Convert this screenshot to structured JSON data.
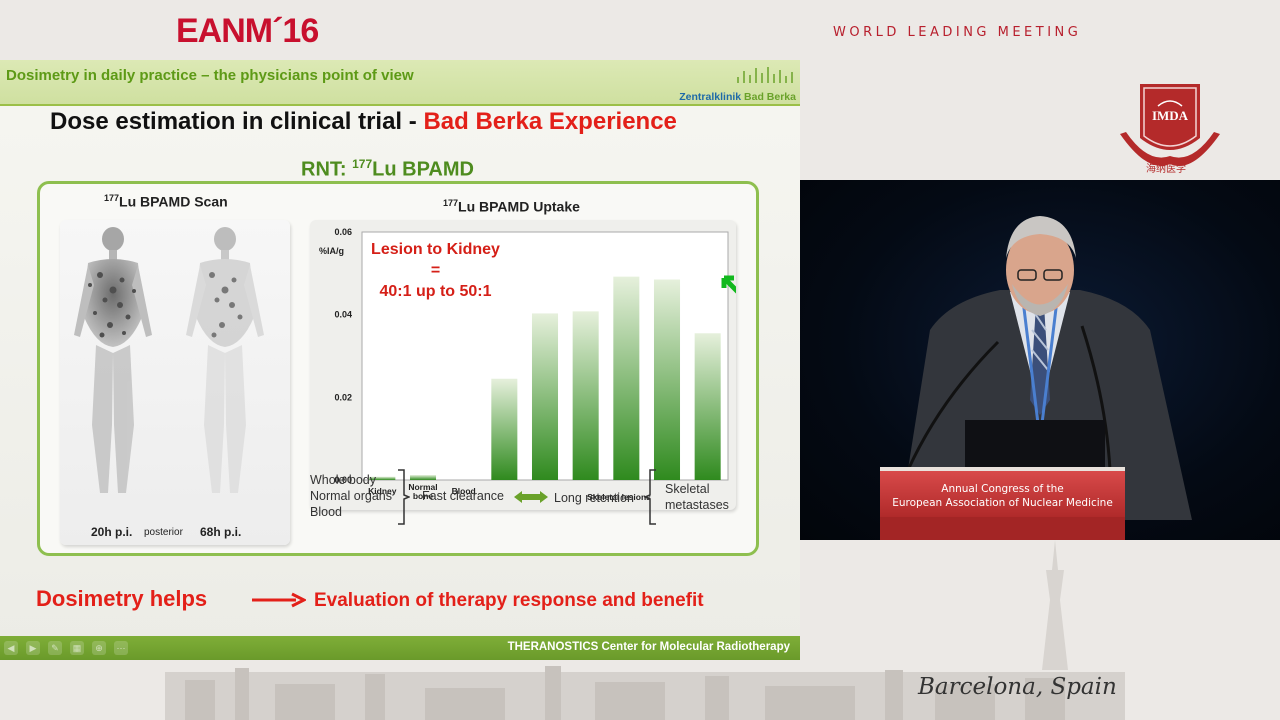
{
  "brand": {
    "name": "EANM´16",
    "tagline": "WORLD LEADING MEETING"
  },
  "logo": {
    "abbr": "IMDA",
    "chinese": "海纳医学",
    "color": "#b42a2a"
  },
  "slide": {
    "header_title": "Dosimetry in daily practice – the physicians point of view",
    "hospital_a": "Zentralklinik ",
    "hospital_b": "Bad Berka",
    "title_a": "Dose estimation in clinical trial - ",
    "title_b": "Bad Berka Experience",
    "rnt_prefix": "RNT: ",
    "rnt_iso": "177",
    "rnt_agent": "Lu BPAMD",
    "scan": {
      "iso": "177",
      "title": "Lu BPAMD Scan",
      "label_left": "20h p.i.",
      "label_mid": "posterior",
      "label_right": "68h p.i."
    },
    "uptake": {
      "iso": "177",
      "title": "Lu BPAMD Uptake"
    },
    "lesion_box": {
      "line1": "Lesion to Kidney",
      "line2": "=",
      "line3": "40:1 up to 50:1"
    },
    "flow": {
      "left": [
        "Whole body",
        "Normal organs",
        "Blood"
      ],
      "fast": "Fast clearance",
      "long": "Long retention",
      "right": [
        "Skeletal",
        "metastases"
      ]
    },
    "helps": "Dosimetry helps",
    "evaluation": "Evaluation of therapy response and benefit",
    "footer": "THERANOSTICS Center for Molecular Radiotherapy",
    "accent": "#e32019",
    "green": "#6aa22a"
  },
  "chart_data": {
    "type": "bar",
    "ylabel": "%IA/g",
    "ylim": [
      0,
      0.06
    ],
    "yticks": [
      "0.00",
      "0.02",
      "0.04",
      "0.06"
    ],
    "categories": [
      "Kidney",
      "Normal bone",
      "Blood",
      "",
      "",
      "",
      "",
      "",
      ""
    ],
    "group_label": "Skeletal lesions",
    "values": [
      0.0008,
      0.0012,
      0.0,
      0.0245,
      0.0403,
      0.0408,
      0.0492,
      0.0485,
      0.0355
    ],
    "color": "#3c9a2a"
  },
  "video": {
    "podium_line1": "Annual Congress of the",
    "podium_line2": "European Association of Nuclear Medicine"
  },
  "location": "Barcelona, Spain"
}
